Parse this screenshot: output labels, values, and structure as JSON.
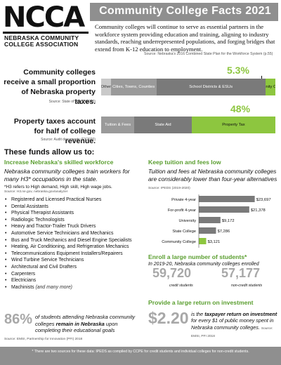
{
  "logo": {
    "letters": "NCCA",
    "sub_line1": "NEBRASKA COMMUNITY",
    "sub_line2": "COLLEGE ASSOCIATION"
  },
  "title": "Community College Facts 2021",
  "intro": {
    "text": "Community colleges will continue to serve as essential partners in the workforce system providing education and training, aligning to industry standards, reaching underrepresented populations, and forging bridges that extend from K-12 education to employment.",
    "source": "Source: Nebraska's 2016 Combined State Plan for the Workforce System (p.55)"
  },
  "property_taxes": {
    "heading": "Community colleges receive a small proportion of Nebraska property taxes.",
    "source": "Source: State of NE (FY2020)",
    "pct_label": "5.3%",
    "segments": [
      {
        "label": "Other",
        "share": 5,
        "color": "#c9c9c9",
        "text_color": "#333333"
      },
      {
        "label": "Cities, Towns, Counties",
        "share": 24,
        "color": "#9a9a9a",
        "text_color": "#ffffff"
      },
      {
        "label": "School Districts & ESUs",
        "share": 57,
        "color": "#7a7a7a",
        "text_color": "#ffffff"
      },
      {
        "label": "Community Colleges",
        "share": 5.3,
        "color": "#8dc63f",
        "text_color": "#111111"
      }
    ]
  },
  "college_revenue": {
    "heading": "Property taxes account for half of college revenue.",
    "source": "Source: Audit documents (FY2020)",
    "pct_label": "48%",
    "segments": [
      {
        "label": "Tuition & Fees",
        "share": 19,
        "color": "#9a9a9a",
        "text_color": "#ffffff"
      },
      {
        "label": "State Aid",
        "share": 33,
        "color": "#7a7a7a",
        "text_color": "#ffffff"
      },
      {
        "label": "Property Tax",
        "share": 48,
        "color": "#8dc63f",
        "text_color": "#111111"
      }
    ]
  },
  "funds_heading": "These funds allow us to:",
  "workforce": {
    "heading": "Increase Nebraska's skilled workforce",
    "lead": "Nebraska community colleges train workers for many H3* occupations in the state.",
    "h3_note": "*H3 refers to High demand, High skill, High wage jobs.",
    "h3_source": "Source: H3.ne.gov, nebraska.gov/analyzer",
    "occupations": [
      "Registered and Licensed Practical Nurses",
      "Dental Assistants",
      "Physical Therapist Assistants",
      "Radiologic Technologists",
      "Heavy and Tractor-Trailer Truck Drivers",
      "Automotive Service Technicians and Mechanics",
      "Bus and Truck Mechanics and Diesel Engine Specialists",
      "Heating, Air Conditioning, and Refrigeration Mechanics",
      "Telecommunications Equipment Installers/Repairers",
      "Wind Turbine Service Technicians",
      "Architectural and Civil Drafters",
      "Carpenters",
      "Electricians",
      "Machinists"
    ],
    "more": "(and many more)",
    "stat_pct": "86%",
    "stat_text_1": "of students attending Nebraska community colleges",
    "stat_text_bold": "remain in Nebraska",
    "stat_text_2": "upon completing their educational goals",
    "stat_source": "Source: EMSI, Partnership for Innovation (PFI) 2018"
  },
  "tuition": {
    "heading": "Keep tuition and fees low",
    "lead": "Tuition and fees at Nebraska community colleges are considerably lower than four-year alternatives",
    "source": "Source: IPEDS (2019-2020)"
  },
  "chart_data": {
    "type": "bar",
    "orientation": "horizontal",
    "title": "",
    "xlabel": "",
    "ylabel": "",
    "categories": [
      "Private 4-year",
      "For-profit 4-year",
      "University",
      "State College",
      "Community College"
    ],
    "values": [
      23697,
      21378,
      9172,
      7286,
      3121
    ],
    "value_labels": [
      "$23,697",
      "$21,378",
      "$9,172",
      "$7,286",
      "$3,121"
    ],
    "colors": [
      "#7a7a7a",
      "#7a7a7a",
      "#7a7a7a",
      "#7a7a7a",
      "#8dc63f"
    ],
    "xlim": [
      0,
      25000
    ],
    "grid": false
  },
  "enrollment": {
    "heading": "Enroll a large number of students*",
    "lead": "In 2019-20, Nebraska community colleges enrolled",
    "credit_value": "59,720",
    "credit_label": "credit students",
    "noncredit_value": "57,177",
    "noncredit_label": "non-credit students"
  },
  "return": {
    "heading": "Provide a large return on investment",
    "amount": "$2.20",
    "text_1": "is the",
    "text_bold": "taxpayer return on investment",
    "text_2": "for every $1 of public money spent in Nebraska community colleges.",
    "source": "Source: EMSI, PFI 2018"
  },
  "footer_note": "* There are two sources for these data: IPEDS as compiled by CCPE for credit students and individual colleges for non-credit students."
}
